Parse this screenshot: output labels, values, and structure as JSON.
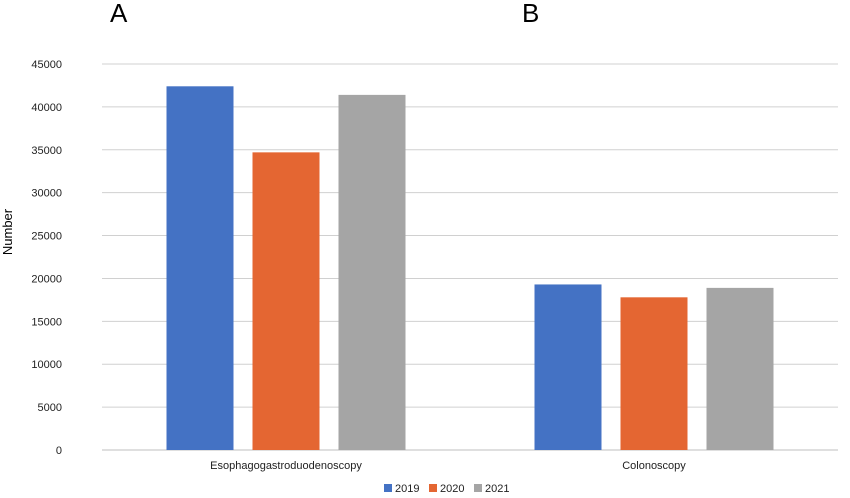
{
  "panel_labels": [
    "A",
    "B"
  ],
  "chart_data": {
    "type": "bar",
    "categories": [
      "Esophagogastroduodenoscopy",
      "Colonoscopy"
    ],
    "series": [
      {
        "name": "2019",
        "color": "#4472c4",
        "values": [
          42400,
          19300
        ]
      },
      {
        "name": "2020",
        "color": "#e46632",
        "values": [
          34700,
          17800
        ]
      },
      {
        "name": "2021",
        "color": "#a5a5a5",
        "values": [
          41400,
          18900
        ]
      }
    ],
    "ylabel": "Number",
    "ylim": [
      0,
      45000
    ],
    "yticks": [
      0,
      5000,
      10000,
      15000,
      20000,
      25000,
      30000,
      35000,
      40000,
      45000
    ],
    "grid": true,
    "legend": "bottom"
  }
}
